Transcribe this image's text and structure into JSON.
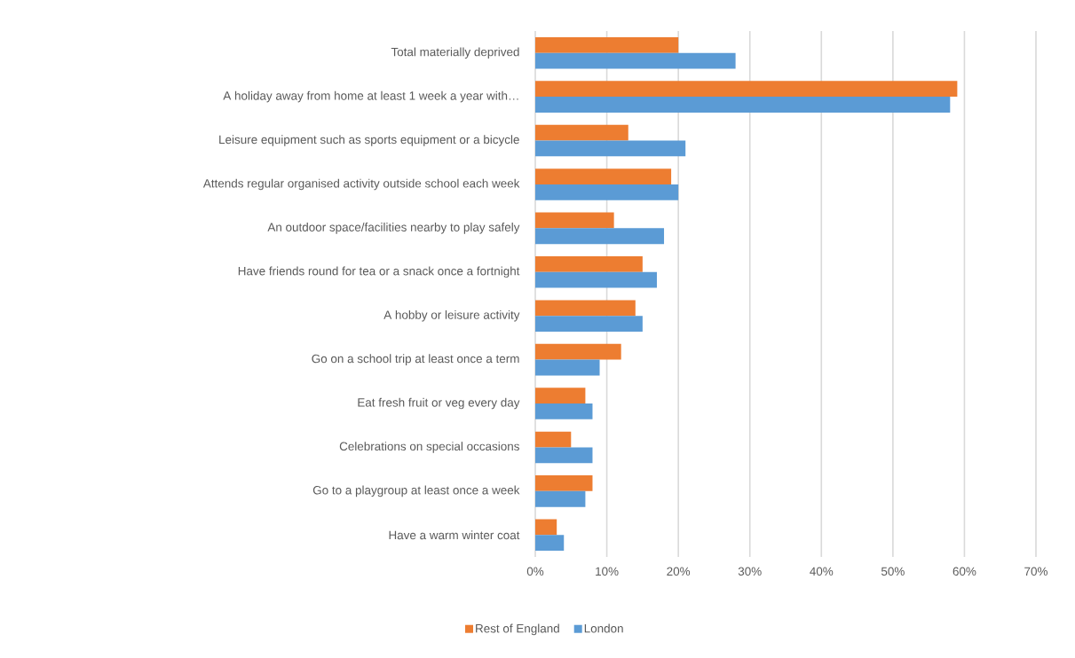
{
  "chart_data": {
    "type": "bar",
    "orientation": "horizontal",
    "categories": [
      "Total materially deprived",
      "A holiday away from home at least 1 week a year with…",
      "Leisure equipment such as sports equipment or a bicycle",
      "Attends regular organised activity outside school each week",
      "An outdoor space/facilities nearby to play safely",
      "Have friends round for tea or a snack once a fortnight",
      "A hobby or leisure activity",
      "Go on a school trip at least once a term",
      "Eat fresh fruit or veg every day",
      "Celebrations on special occasions",
      "Go to a playgroup at least once a week",
      "Have a warm winter coat"
    ],
    "series": [
      {
        "name": "Rest of England",
        "color": "#ed7d31",
        "values": [
          20,
          59,
          13,
          19,
          11,
          15,
          14,
          12,
          7,
          5,
          8,
          3
        ]
      },
      {
        "name": "London",
        "color": "#5b9bd5",
        "values": [
          28,
          58,
          21,
          20,
          18,
          17,
          15,
          9,
          8,
          8,
          7,
          4
        ]
      }
    ],
    "xlim": [
      0,
      70
    ],
    "xticks": [
      {
        "value": 0,
        "label": "0%"
      },
      {
        "value": 10,
        "label": "10%"
      },
      {
        "value": 20,
        "label": "20%"
      },
      {
        "value": 30,
        "label": "30%"
      },
      {
        "value": 40,
        "label": "40%"
      },
      {
        "value": 50,
        "label": "50%"
      },
      {
        "value": 60,
        "label": "60%"
      },
      {
        "value": 70,
        "label": "70%"
      }
    ],
    "grid": "x",
    "legend": "bottom"
  }
}
